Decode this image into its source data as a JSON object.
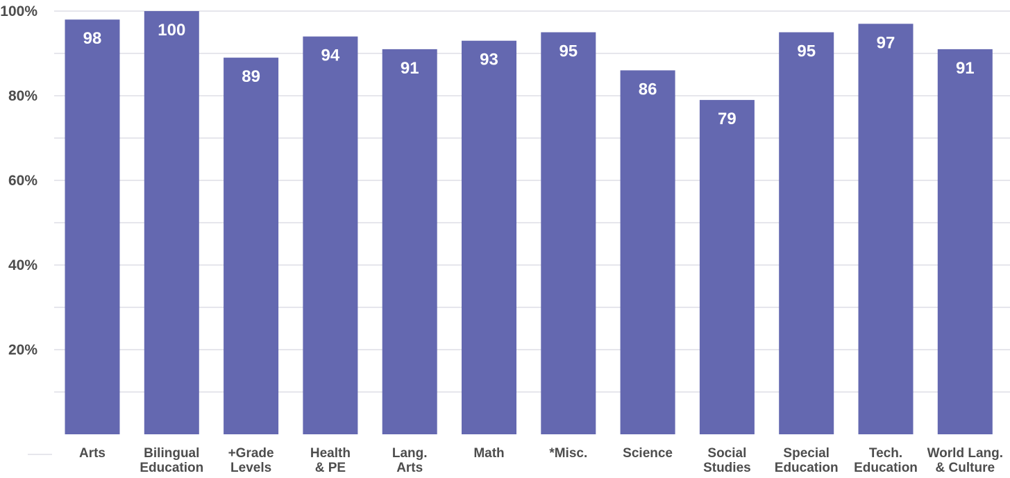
{
  "chart_data": {
    "type": "bar",
    "categories": [
      [
        "Arts"
      ],
      [
        "Bilingual",
        "Education"
      ],
      [
        "+Grade",
        "Levels"
      ],
      [
        "Health",
        "& PE"
      ],
      [
        "Lang.",
        "Arts"
      ],
      [
        "Math"
      ],
      [
        "*Misc."
      ],
      [
        "Science"
      ],
      [
        "Social",
        "Studies"
      ],
      [
        "Special",
        "Education"
      ],
      [
        "Tech.",
        "Education"
      ],
      [
        "World Lang.",
        "& Culture"
      ]
    ],
    "values": [
      98,
      100,
      89,
      94,
      91,
      93,
      95,
      86,
      79,
      95,
      97,
      91
    ],
    "value_labels": [
      "98",
      "100",
      "89",
      "94",
      "91",
      "93",
      "95",
      "86",
      "79",
      "95",
      "97",
      "91"
    ],
    "ylim": [
      0,
      100
    ],
    "yticks": [
      20,
      40,
      60,
      80,
      100
    ],
    "ytick_labels": [
      "20%",
      "40%",
      "60%",
      "80%",
      "100%"
    ],
    "grid": true,
    "bar_color": "#6468b0",
    "grid_color": "#e6e6ec",
    "title": "",
    "xlabel": "",
    "ylabel": ""
  }
}
